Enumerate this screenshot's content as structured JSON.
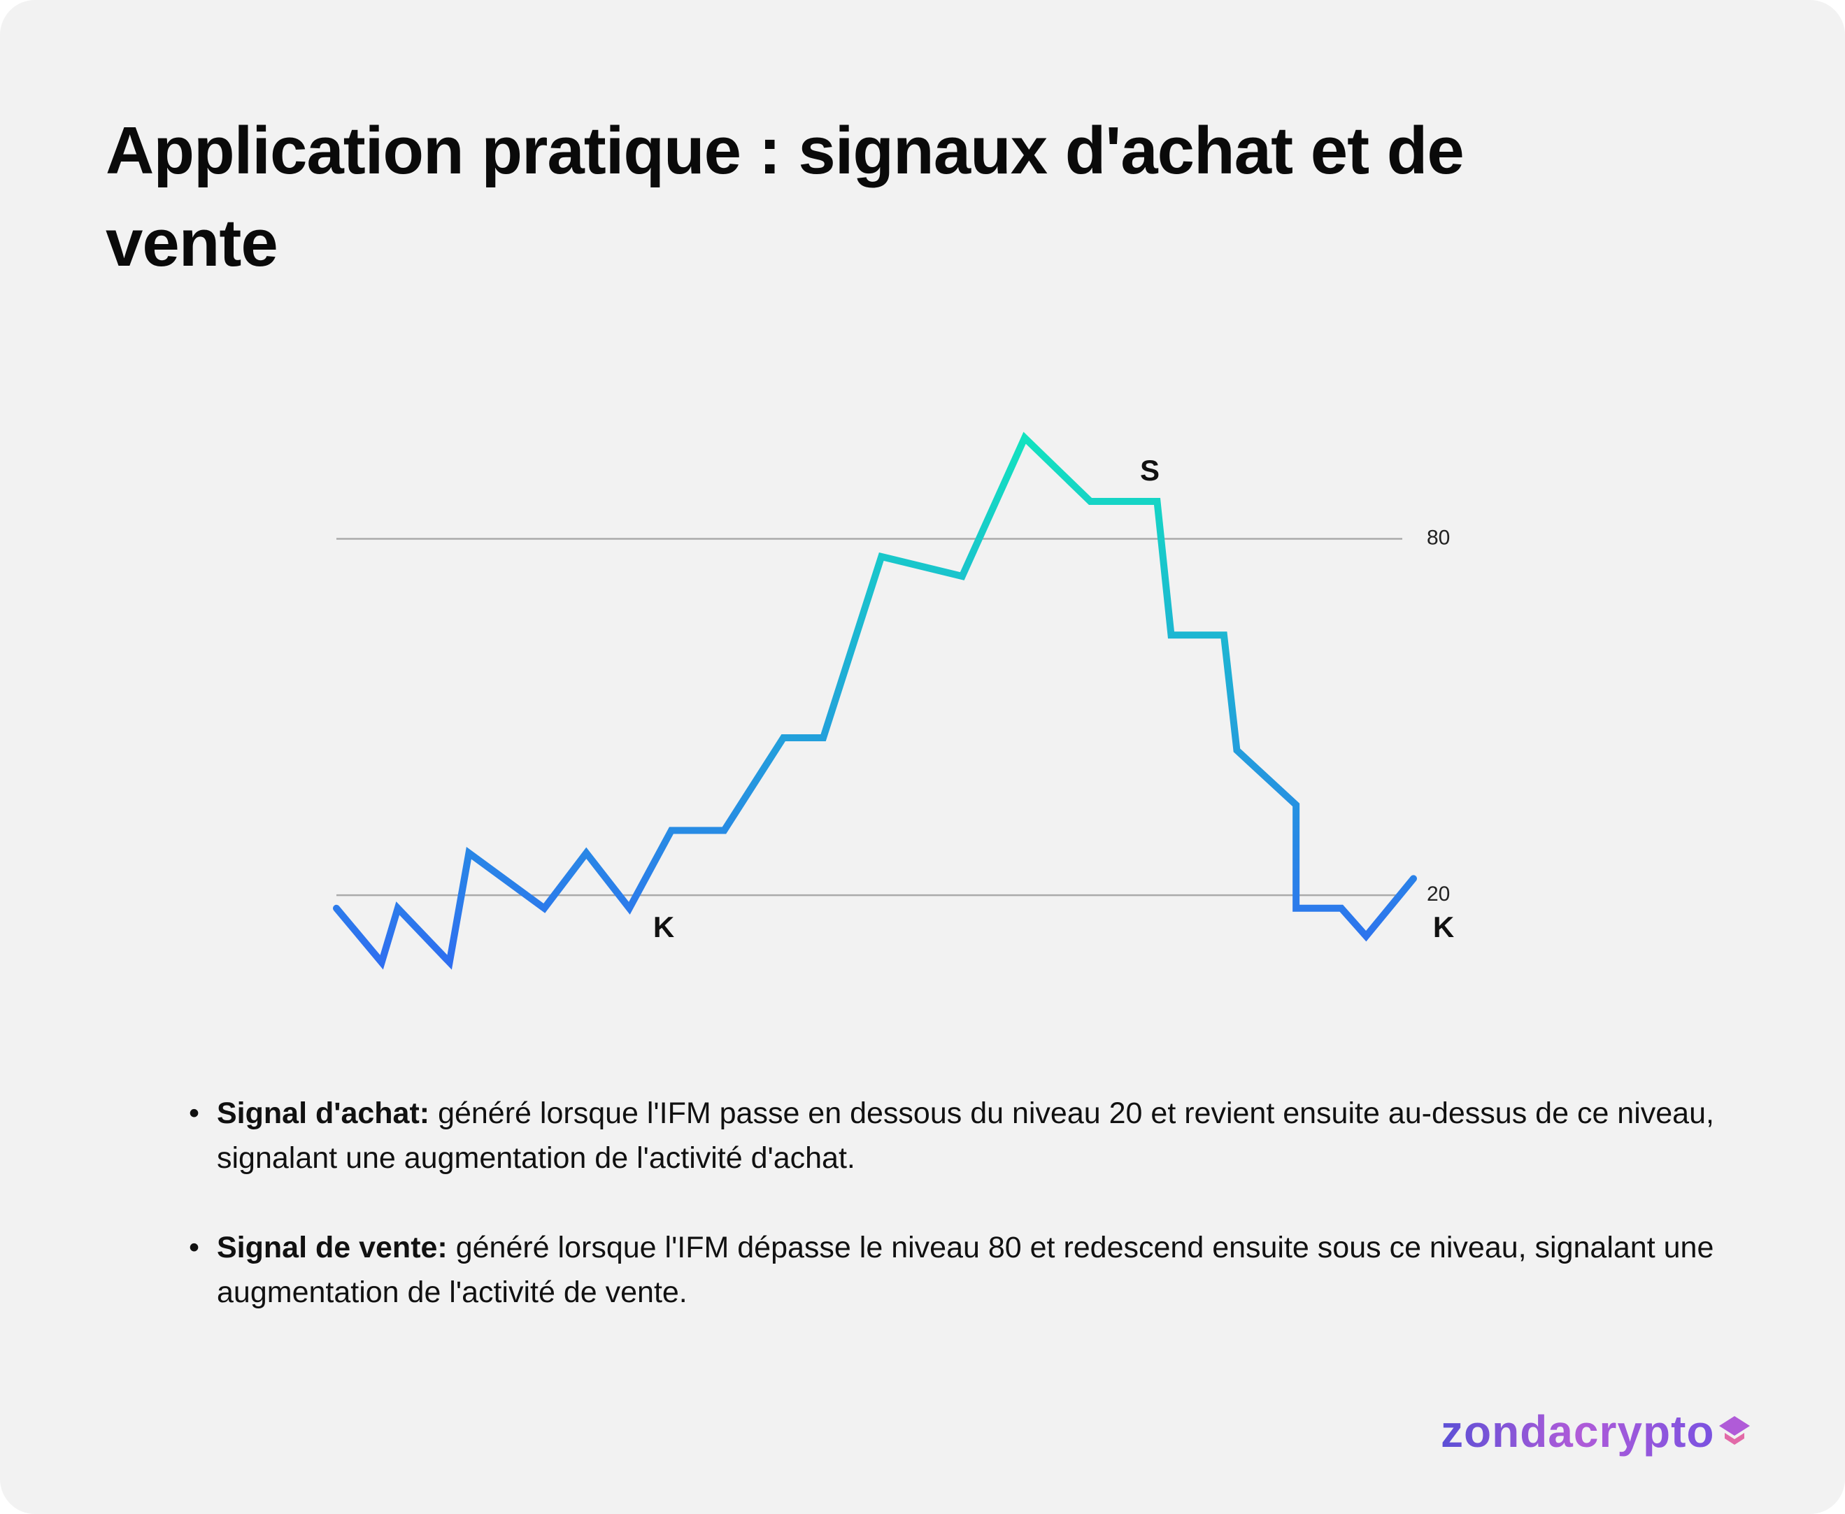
{
  "header": {
    "title": "Application pratique : signaux d'achat et de vente"
  },
  "chart_data": {
    "type": "line",
    "x": [
      0,
      4.2,
      5.7,
      10.5,
      12.3,
      19.3,
      23.2,
      27.2,
      31.1,
      36.0,
      41.5,
      45.2,
      50.6,
      58.1,
      63.9,
      70.0,
      76.2,
      77.5,
      82.4,
      83.6,
      89.1,
      89.1,
      93.3,
      95.6,
      100
    ],
    "series": [
      {
        "values": [
          17.8,
          8.7,
          17.8,
          8.7,
          27.1,
          17.8,
          27.1,
          17.8,
          30.9,
          30.9,
          46.5,
          46.5,
          77.0,
          73.7,
          97.0,
          86.3,
          86.3,
          63.8,
          63.8,
          44.4,
          35.2,
          17.8,
          17.8,
          13.1,
          22.8
        ],
        "gradient": [
          "#2f6ef0",
          "#12e3bf"
        ]
      }
    ],
    "xlim": [
      0,
      100
    ],
    "ylim": [
      0,
      100
    ],
    "yticks": [
      20,
      80
    ],
    "grid": true,
    "annotations": [
      "K",
      "S",
      "K"
    ]
  },
  "bullets": [
    {
      "label": "Signal d'achat:",
      "text": "généré lorsque l'IFM passe en dessous du niveau 20 et revient ensuite au-dessus de ce niveau, signalant une augmentation de l'activité d'achat."
    },
    {
      "label": "Signal de vente:",
      "text": "généré lorsque l'IFM dépasse le niveau 80 et redescend ensuite sous ce niveau, signalant une augmentation de l'activité de vente."
    }
  ],
  "logo": {
    "text": "zondacrypto"
  }
}
